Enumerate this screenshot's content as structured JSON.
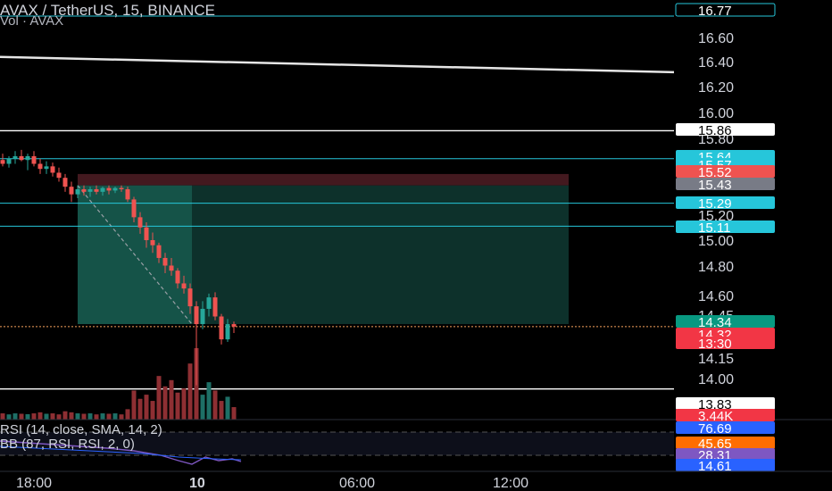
{
  "header": {
    "symbol_line": "AVAX / TetherUS, 15, BINANCE",
    "volume_line": "Vol · AVAX"
  },
  "indicators": {
    "rsi_line": "RSI (14, close, SMA, 14, 2)",
    "bb_line": "BB (87, RSI, RSI, 2, 0)"
  },
  "colors": {
    "up": "#26a69a",
    "down": "#ef5350",
    "horizontal_line": "#ffffff",
    "cyan_line": "#26c6da",
    "profit_zone": "#0f3a33",
    "loss_zone": "#4a1c22",
    "current_price_line": "#f7a35c",
    "rsi_line": "#7e57c2"
  },
  "chart_data": {
    "type": "candlestick",
    "symbol": "AVAX / TetherUS",
    "timeframe": "15",
    "exchange": "BINANCE",
    "currency_label": "USDT",
    "price_axis_ticks": [
      "16.60",
      "16.40",
      "16.20",
      "16.00",
      "15.80",
      "15.20",
      "15.00",
      "14.80",
      "14.60",
      "14.45",
      "14.15",
      "14.00"
    ],
    "time_axis_ticks": [
      "18:00",
      "10",
      "06:00",
      "12:00"
    ],
    "price_labels": [
      {
        "value": "16.77",
        "color": "#26c6da",
        "style": "outline"
      },
      {
        "value": "15.86",
        "color": "#ffffff",
        "style": "light"
      },
      {
        "value": "15.64",
        "color": "#26c6da",
        "style": "fill"
      },
      {
        "value": "15.57",
        "color": "#26c6da",
        "style": "fill"
      },
      {
        "value": "15.52",
        "color": "#ef5350",
        "style": "fill"
      },
      {
        "value": "15.43",
        "color": "#787b86",
        "style": "fill"
      },
      {
        "value": "15.29",
        "color": "#26c6da",
        "style": "fill"
      },
      {
        "value": "15.11",
        "color": "#26c6da",
        "style": "fill"
      },
      {
        "value": "14.34",
        "color": "#089981",
        "style": "fill"
      },
      {
        "value": "14.32",
        "color": "#f23645",
        "style": "fill"
      },
      {
        "value": "13:30",
        "color": "#f23645",
        "style": "fill"
      },
      {
        "value": "13.83",
        "color": "#ffffff",
        "style": "light"
      },
      {
        "value": "3.44K",
        "color": "#f23645",
        "style": "fill"
      },
      {
        "value": "76.69",
        "color": "#2962ff",
        "style": "fill"
      },
      {
        "value": "45.65",
        "color": "#ff6d00",
        "style": "fill"
      },
      {
        "value": "28.31",
        "color": "#7e57c2",
        "style": "fill"
      },
      {
        "value": "14.61",
        "color": "#2962ff",
        "style": "fill"
      }
    ],
    "horizontal_lines": [
      15.86,
      15.64,
      15.29,
      15.11,
      13.83
    ],
    "trend_line": {
      "from_price": 16.44,
      "to_price": 16.32
    },
    "position_zone": {
      "entry": 15.43,
      "stop": 15.52,
      "target": 14.34
    },
    "candles": [
      {
        "o": 15.63,
        "h": 15.68,
        "l": 15.58,
        "c": 15.6
      },
      {
        "o": 15.6,
        "h": 15.66,
        "l": 15.57,
        "c": 15.64
      },
      {
        "o": 15.64,
        "h": 15.7,
        "l": 15.6,
        "c": 15.66
      },
      {
        "o": 15.66,
        "h": 15.71,
        "l": 15.62,
        "c": 15.63
      },
      {
        "o": 15.63,
        "h": 15.68,
        "l": 15.55,
        "c": 15.66
      },
      {
        "o": 15.66,
        "h": 15.7,
        "l": 15.58,
        "c": 15.6
      },
      {
        "o": 15.6,
        "h": 15.64,
        "l": 15.52,
        "c": 15.56
      },
      {
        "o": 15.56,
        "h": 15.62,
        "l": 15.52,
        "c": 15.58
      },
      {
        "o": 15.58,
        "h": 15.61,
        "l": 15.5,
        "c": 15.53
      },
      {
        "o": 15.53,
        "h": 15.57,
        "l": 15.46,
        "c": 15.49
      },
      {
        "o": 15.49,
        "h": 15.52,
        "l": 15.38,
        "c": 15.42
      },
      {
        "o": 15.42,
        "h": 15.46,
        "l": 15.3,
        "c": 15.36
      },
      {
        "o": 15.36,
        "h": 15.43,
        "l": 15.33,
        "c": 15.4
      },
      {
        "o": 15.4,
        "h": 15.43,
        "l": 15.35,
        "c": 15.38
      },
      {
        "o": 15.38,
        "h": 15.42,
        "l": 15.34,
        "c": 15.4
      },
      {
        "o": 15.4,
        "h": 15.43,
        "l": 15.36,
        "c": 15.38
      },
      {
        "o": 15.38,
        "h": 15.42,
        "l": 15.35,
        "c": 15.41
      },
      {
        "o": 15.41,
        "h": 15.43,
        "l": 15.36,
        "c": 15.39
      },
      {
        "o": 15.39,
        "h": 15.42,
        "l": 15.37,
        "c": 15.41
      },
      {
        "o": 15.41,
        "h": 15.43,
        "l": 15.38,
        "c": 15.4
      },
      {
        "o": 15.4,
        "h": 15.42,
        "l": 15.3,
        "c": 15.32
      },
      {
        "o": 15.32,
        "h": 15.34,
        "l": 15.14,
        "c": 15.18
      },
      {
        "o": 15.18,
        "h": 15.22,
        "l": 15.05,
        "c": 15.1
      },
      {
        "o": 15.1,
        "h": 15.14,
        "l": 14.94,
        "c": 15.0
      },
      {
        "o": 15.0,
        "h": 15.06,
        "l": 14.9,
        "c": 14.96
      },
      {
        "o": 14.96,
        "h": 14.98,
        "l": 14.82,
        "c": 14.86
      },
      {
        "o": 14.86,
        "h": 14.9,
        "l": 14.74,
        "c": 14.8
      },
      {
        "o": 14.8,
        "h": 14.86,
        "l": 14.72,
        "c": 14.76
      },
      {
        "o": 14.76,
        "h": 14.78,
        "l": 14.62,
        "c": 14.66
      },
      {
        "o": 14.66,
        "h": 14.72,
        "l": 14.58,
        "c": 14.62
      },
      {
        "o": 14.62,
        "h": 14.66,
        "l": 14.42,
        "c": 14.48
      },
      {
        "o": 14.48,
        "h": 14.52,
        "l": 13.86,
        "c": 14.34
      },
      {
        "o": 14.34,
        "h": 14.52,
        "l": 14.3,
        "c": 14.46
      },
      {
        "o": 14.46,
        "h": 14.58,
        "l": 14.4,
        "c": 14.55
      },
      {
        "o": 14.55,
        "h": 14.59,
        "l": 14.37,
        "c": 14.4
      },
      {
        "o": 14.4,
        "h": 14.42,
        "l": 14.18,
        "c": 14.22
      },
      {
        "o": 14.22,
        "h": 14.38,
        "l": 14.2,
        "c": 14.34
      },
      {
        "o": 14.34,
        "h": 14.36,
        "l": 14.27,
        "c": 14.32
      }
    ],
    "volume": [
      0.3,
      0.25,
      0.3,
      0.28,
      0.26,
      0.3,
      0.35,
      0.28,
      0.3,
      0.25,
      0.4,
      0.35,
      0.3,
      0.28,
      0.3,
      0.25,
      0.3,
      0.28,
      0.3,
      0.25,
      0.5,
      1.4,
      1.0,
      1.2,
      0.9,
      2.1,
      1.6,
      1.9,
      1.3,
      1.5,
      2.7,
      3.44,
      1.2,
      1.8,
      1.4,
      0.9,
      1.1,
      0.6
    ]
  }
}
